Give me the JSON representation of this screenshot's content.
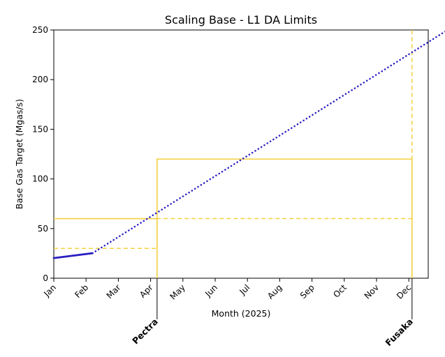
{
  "chart_data": {
    "type": "line",
    "title": "Scaling Base - L1 DA Limits",
    "xlabel": "Month (2025)",
    "ylabel": "Base Gas Target (Mgas/s)",
    "ylim": [
      0,
      250
    ],
    "yticks": [
      0,
      50,
      100,
      150,
      200,
      250
    ],
    "categories": [
      "Jan",
      "Feb",
      "Mar",
      "Apr",
      "May",
      "Jun",
      "Jul",
      "Aug",
      "Sep",
      "Oct",
      "Nov",
      "Dec"
    ],
    "grid": false,
    "series": [
      {
        "style": "solid",
        "color": "#2a1fc2",
        "points": [
          [
            0,
            20.3
          ],
          [
            1.2,
            25.2
          ]
        ]
      },
      {
        "style": "dotted",
        "color": "#2a1fc2",
        "points": [
          [
            1.2,
            25.2
          ],
          [
            12.2,
            250
          ]
        ]
      }
    ],
    "limit_lines": [
      {
        "style": "solid",
        "color": "#f4d03f",
        "points": [
          [
            0,
            60
          ],
          [
            3.2,
            60
          ],
          [
            3.2,
            0
          ],
          [
            3.2,
            120
          ],
          [
            11.1,
            120
          ],
          [
            11.1,
            0
          ]
        ]
      },
      {
        "style": "dashed",
        "color": "#f4d03f",
        "points": [
          [
            0,
            30
          ],
          [
            3.2,
            30
          ],
          [
            3.2,
            60
          ],
          [
            11.1,
            60
          ],
          [
            11.1,
            250
          ]
        ]
      }
    ],
    "milestones": [
      {
        "label": "Pectra",
        "x": 3.2
      },
      {
        "label": "Fusaka",
        "x": 11.1
      }
    ],
    "ytick_labels": [
      "0",
      "50",
      "100",
      "150",
      "200",
      "250"
    ]
  }
}
